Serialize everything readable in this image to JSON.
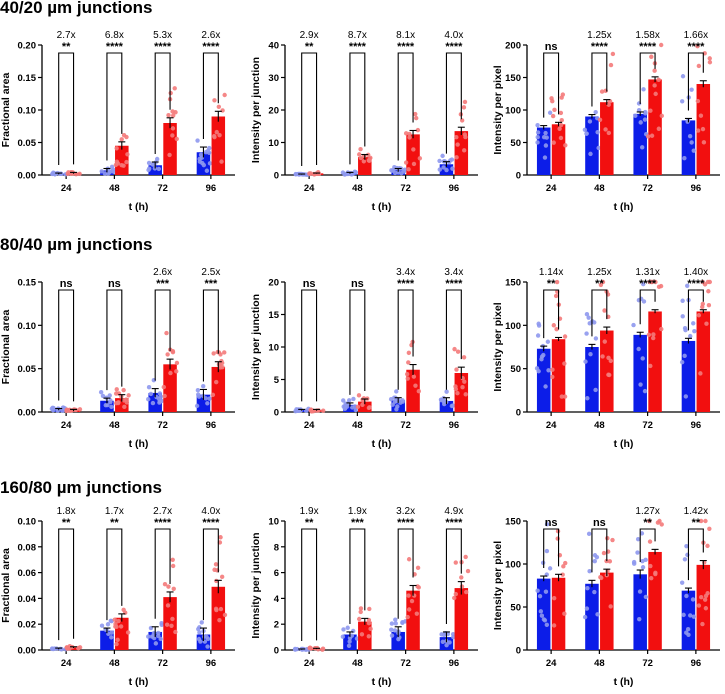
{
  "figure": {
    "rows": [
      {
        "title": "40/20 µm junctions"
      },
      {
        "title": "80/40 µm junctions"
      },
      {
        "title": "160/80 µm junctions"
      }
    ]
  },
  "colors": {
    "blue_bar": "#0c1de8",
    "blue_point": "#8e98ee",
    "red_bar": "#f20f0f",
    "red_point": "#f47a7a"
  },
  "chart_data": [
    {
      "type": "bar",
      "title": "40/20 µm junctions",
      "xlabel": "t (h)",
      "ylabel": "Fractional area",
      "categories": [
        "24",
        "48",
        "72",
        "96"
      ],
      "ylim": [
        0,
        0.2
      ],
      "yticks": [
        "0.00",
        "0.05",
        "0.10",
        "0.15",
        "0.20"
      ],
      "series": [
        {
          "name": "blue",
          "values": [
            0.002,
            0.007,
            0.015,
            0.035
          ],
          "sem": [
            0.001,
            0.003,
            0.005,
            0.008
          ]
        },
        {
          "name": "red",
          "values": [
            0.003,
            0.045,
            0.08,
            0.09
          ],
          "sem": [
            0.001,
            0.006,
            0.008,
            0.008
          ]
        }
      ],
      "fold": [
        "2.7x",
        "6.8x",
        "5.3x",
        "2.6x"
      ],
      "significance": [
        "**",
        "****",
        "****",
        "****"
      ]
    },
    {
      "type": "bar",
      "title": "40/20 µm junctions",
      "xlabel": "t (h)",
      "ylabel": "Intensity per junction",
      "categories": [
        "24",
        "48",
        "72",
        "96"
      ],
      "ylim": [
        0,
        40
      ],
      "yticks": [
        "0",
        "10",
        "20",
        "30",
        "40"
      ],
      "series": [
        {
          "name": "blue",
          "values": [
            0.2,
            0.6,
            1.5,
            3.3
          ],
          "sem": [
            0.1,
            0.2,
            0.5,
            0.8
          ]
        },
        {
          "name": "red",
          "values": [
            0.5,
            5.5,
            12.5,
            13.5
          ],
          "sem": [
            0.1,
            0.8,
            1.2,
            1.2
          ]
        }
      ],
      "fold": [
        "2.9x",
        "8.7x",
        "8.1x",
        "4.0x"
      ],
      "significance": [
        "**",
        "****",
        "****",
        "****"
      ]
    },
    {
      "type": "bar",
      "title": "40/20 µm junctions",
      "xlabel": "t (h)",
      "ylabel": "Intensity per pixel",
      "categories": [
        "24",
        "48",
        "72",
        "96"
      ],
      "ylim": [
        0,
        200
      ],
      "yticks": [
        "0",
        "50",
        "100",
        "150",
        "200"
      ],
      "series": [
        {
          "name": "blue",
          "values": [
            73,
            90,
            94,
            84
          ],
          "sem": [
            3,
            3,
            3,
            3
          ]
        },
        {
          "name": "red",
          "values": [
            78,
            112,
            147,
            140
          ],
          "sem": [
            3,
            4,
            4,
            5
          ]
        }
      ],
      "fold": [
        "",
        "1.25x",
        "1.58x",
        "1.66x"
      ],
      "significance": [
        "ns",
        "****",
        "****",
        "****"
      ]
    },
    {
      "type": "bar",
      "title": "80/40 µm junctions",
      "xlabel": "t (h)",
      "ylabel": "Fractional area",
      "categories": [
        "24",
        "48",
        "72",
        "96"
      ],
      "ylim": [
        0,
        0.15
      ],
      "yticks": [
        "0.00",
        "0.05",
        "0.10",
        "0.15"
      ],
      "series": [
        {
          "name": "blue",
          "values": [
            0.003,
            0.013,
            0.022,
            0.02
          ],
          "sem": [
            0.001,
            0.003,
            0.005,
            0.006
          ]
        },
        {
          "name": "red",
          "values": [
            0.002,
            0.016,
            0.055,
            0.052
          ],
          "sem": [
            0.001,
            0.004,
            0.006,
            0.006
          ]
        }
      ],
      "fold": [
        "",
        "",
        "2.6x",
        "2.5x"
      ],
      "significance": [
        "ns",
        "ns",
        "***",
        "***"
      ]
    },
    {
      "type": "bar",
      "title": "80/40 µm junctions",
      "xlabel": "t (h)",
      "ylabel": "Intensity per junction",
      "categories": [
        "24",
        "48",
        "72",
        "96"
      ],
      "ylim": [
        0,
        20
      ],
      "yticks": [
        "0",
        "5",
        "10",
        "15",
        "20"
      ],
      "series": [
        {
          "name": "blue",
          "values": [
            0.3,
            1.1,
            1.8,
            1.7
          ],
          "sem": [
            0.1,
            0.3,
            0.4,
            0.5
          ]
        },
        {
          "name": "red",
          "values": [
            0.3,
            1.6,
            6.5,
            6.0
          ],
          "sem": [
            0.1,
            0.4,
            0.8,
            0.9
          ]
        }
      ],
      "fold": [
        "",
        "",
        "3.4x",
        "3.4x"
      ],
      "significance": [
        "ns",
        "ns",
        "****",
        "****"
      ]
    },
    {
      "type": "bar",
      "title": "80/40 µm junctions",
      "xlabel": "t (h)",
      "ylabel": "Intensity per pixel",
      "categories": [
        "24",
        "48",
        "72",
        "96"
      ],
      "ylim": [
        0,
        150
      ],
      "yticks": [
        "0",
        "50",
        "100",
        "150"
      ],
      "series": [
        {
          "name": "blue",
          "values": [
            73,
            75,
            89,
            82
          ],
          "sem": [
            3,
            3,
            3,
            3
          ]
        },
        {
          "name": "red",
          "values": [
            84,
            94,
            116,
            116
          ],
          "sem": [
            2,
            4,
            2,
            2
          ]
        }
      ],
      "fold": [
        "1.14x",
        "1.25x",
        "1.31x",
        "1.40x"
      ],
      "significance": [
        "**",
        "**",
        "****",
        "****"
      ]
    },
    {
      "type": "bar",
      "title": "160/80 µm junctions",
      "xlabel": "t (h)",
      "ylabel": "Fractional area",
      "categories": [
        "24",
        "48",
        "72",
        "96"
      ],
      "ylim": [
        0,
        0.1
      ],
      "yticks": [
        "0.00",
        "0.02",
        "0.04",
        "0.06",
        "0.08",
        "0.10"
      ],
      "series": [
        {
          "name": "blue",
          "values": [
            0.001,
            0.015,
            0.014,
            0.012
          ],
          "sem": [
            0.0005,
            0.002,
            0.004,
            0.005
          ]
        },
        {
          "name": "red",
          "values": [
            0.002,
            0.025,
            0.041,
            0.049
          ],
          "sem": [
            0.0005,
            0.003,
            0.004,
            0.005
          ]
        }
      ],
      "fold": [
        "1.8x",
        "1.7x",
        "2.7x",
        "4.0x"
      ],
      "significance": [
        "**",
        "**",
        "****",
        "****"
      ]
    },
    {
      "type": "bar",
      "title": "160/80 µm junctions",
      "xlabel": "t (h)",
      "ylabel": "Intensity per junction",
      "categories": [
        "24",
        "48",
        "72",
        "96"
      ],
      "ylim": [
        0,
        10
      ],
      "yticks": [
        "0",
        "2",
        "4",
        "6",
        "8",
        "10"
      ],
      "series": [
        {
          "name": "blue",
          "values": [
            0.05,
            1.2,
            1.4,
            1.0
          ],
          "sem": [
            0.03,
            0.2,
            0.4,
            0.4
          ]
        },
        {
          "name": "red",
          "values": [
            0.1,
            2.2,
            4.6,
            4.8
          ],
          "sem": [
            0.03,
            0.25,
            0.4,
            0.5
          ]
        }
      ],
      "fold": [
        "1.9x",
        "1.9x",
        "3.2x",
        "4.9x"
      ],
      "significance": [
        "**",
        "***",
        "****",
        "****"
      ]
    },
    {
      "type": "bar",
      "title": "160/80 µm junctions",
      "xlabel": "t (h)",
      "ylabel": "Intensity per pixel",
      "categories": [
        "24",
        "48",
        "72",
        "96"
      ],
      "ylim": [
        0,
        150
      ],
      "yticks": [
        "0",
        "50",
        "100",
        "150"
      ],
      "series": [
        {
          "name": "blue",
          "values": [
            83,
            77,
            88,
            69
          ],
          "sem": [
            3,
            4,
            5,
            3
          ]
        },
        {
          "name": "red",
          "values": [
            84,
            90,
            114,
            99
          ],
          "sem": [
            4,
            4,
            3,
            5
          ]
        }
      ],
      "fold": [
        "",
        "",
        "1.27x",
        "1.42x"
      ],
      "significance": [
        "ns",
        "ns",
        "**",
        "**"
      ]
    }
  ]
}
